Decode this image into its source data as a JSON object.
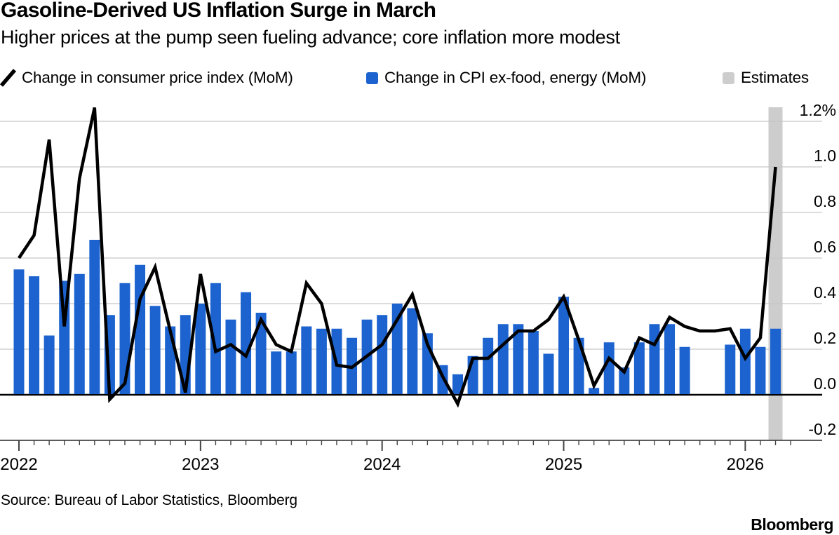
{
  "header": {
    "title": "Gasoline-Derived US Inflation Surge in March",
    "subtitle": "Higher prices at the pump seen fueling advance; core inflation more modest"
  },
  "legend": {
    "items": [
      {
        "label": "Change in consumer price index (MoM)",
        "marker": "line-slash",
        "color": "#000000"
      },
      {
        "label": "Change in CPI ex-food, energy (MoM)",
        "marker": "square",
        "color": "#1C63CF"
      },
      {
        "label": "Estimates",
        "marker": "square",
        "color": "#CDCDCD"
      }
    ]
  },
  "footer": {
    "source": "Source: Bureau of Labor Statistics, Bloomberg",
    "brand": "Bloomberg"
  },
  "chart_data": {
    "type": "combo line + bar",
    "title": "Gasoline-Derived US Inflation Surge in March",
    "unit": "% month-over-month",
    "x": [
      "2022-01",
      "2022-02",
      "2022-03",
      "2022-04",
      "2022-05",
      "2022-06",
      "2022-07",
      "2022-08",
      "2022-09",
      "2022-10",
      "2022-11",
      "2022-12",
      "2023-01",
      "2023-02",
      "2023-03",
      "2023-04",
      "2023-05",
      "2023-06",
      "2023-07",
      "2023-08",
      "2023-09",
      "2023-10",
      "2023-11",
      "2023-12",
      "2024-01",
      "2024-02",
      "2024-03",
      "2024-04",
      "2024-05",
      "2024-06",
      "2024-07",
      "2024-08",
      "2024-09",
      "2024-10",
      "2024-11",
      "2024-12",
      "2025-01",
      "2025-02",
      "2025-03",
      "2025-04",
      "2025-05",
      "2025-06",
      "2025-07",
      "2025-08",
      "2025-09",
      "2025-10",
      "2025-11",
      "2025-12",
      "2026-01",
      "2026-02",
      "2026-03"
    ],
    "series": [
      {
        "name": "Change in consumer price index (MoM)",
        "type": "line",
        "color": "#000000",
        "values": [
          0.6,
          0.7,
          1.12,
          0.3,
          0.95,
          1.26,
          -0.02,
          0.05,
          0.42,
          0.56,
          0.28,
          0.01,
          0.53,
          0.19,
          0.22,
          0.17,
          0.33,
          0.22,
          0.19,
          0.49,
          0.4,
          0.13,
          0.12,
          0.17,
          0.22,
          0.33,
          0.44,
          0.22,
          0.08,
          -0.04,
          0.16,
          0.16,
          0.22,
          0.28,
          0.28,
          0.33,
          0.43,
          0.24,
          0.04,
          0.16,
          0.1,
          0.25,
          0.22,
          0.34,
          0.3,
          0.28,
          0.28,
          0.29,
          0.16,
          0.25,
          1.0
        ]
      },
      {
        "name": "Change in CPI ex-food, energy (MoM)",
        "type": "bar",
        "color": "#1C63CF",
        "values": [
          0.55,
          0.52,
          0.26,
          0.5,
          0.53,
          0.68,
          0.35,
          0.49,
          0.57,
          0.39,
          0.3,
          0.35,
          0.4,
          0.49,
          0.33,
          0.45,
          0.36,
          0.19,
          0.19,
          0.3,
          0.29,
          0.29,
          0.25,
          0.33,
          0.35,
          0.4,
          0.38,
          0.27,
          0.13,
          0.09,
          0.17,
          0.25,
          0.31,
          0.31,
          0.28,
          0.18,
          0.43,
          0.25,
          0.03,
          0.23,
          0.12,
          0.23,
          0.31,
          0.31,
          0.21,
          null,
          null,
          0.22,
          0.29,
          0.21,
          0.29
        ]
      }
    ],
    "estimates": {
      "label": "Estimates",
      "months": [
        "2026-03"
      ],
      "band_color": "#CDCDCD"
    },
    "y_axis": {
      "side": "right",
      "tick_labels": [
        "1.2%",
        "1.0",
        "0.8",
        "0.6",
        "0.4",
        "0.2",
        "0.0",
        "-0.2"
      ],
      "tick_values": [
        1.2,
        1.0,
        0.8,
        0.6,
        0.4,
        0.2,
        0.0,
        -0.2
      ],
      "range": [
        -0.2,
        1.2
      ],
      "zero_line": true
    },
    "x_axis": {
      "tick_labels": [
        "2022",
        "2023",
        "2024",
        "2025",
        "2026"
      ],
      "minor_ticks": "monthly"
    },
    "grid": true,
    "legend_position": "top"
  }
}
